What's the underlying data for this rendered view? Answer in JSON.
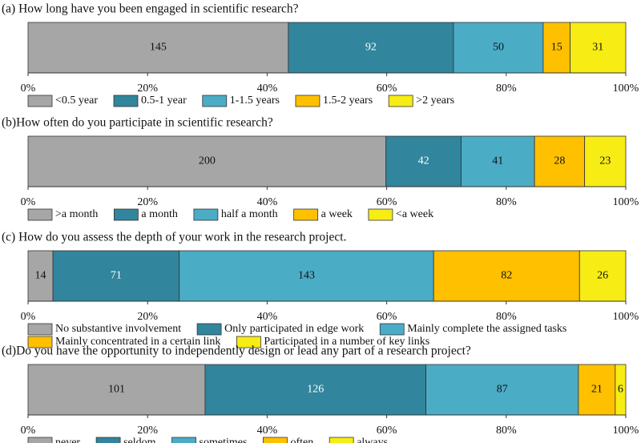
{
  "chart_data": [
    {
      "type": "bar",
      "orientation": "horizontal",
      "stacked": "percent",
      "title": "(a) How long have you been engaged in scientific research?",
      "xlim": [
        0,
        100
      ],
      "xticks": [
        {
          "value": 0,
          "label": "0%"
        },
        {
          "value": 20,
          "label": "20%"
        },
        {
          "value": 40,
          "label": "40%"
        },
        {
          "value": 60,
          "label": "60%"
        },
        {
          "value": 80,
          "label": "80%"
        },
        {
          "value": 100,
          "label": "100%"
        }
      ],
      "legend": "bottom",
      "series": [
        {
          "name": "<0.5 year",
          "color": "#a6a6a6",
          "values": [
            145
          ]
        },
        {
          "name": "0.5-1 year",
          "color": "#31859c",
          "values": [
            92
          ]
        },
        {
          "name": "1-1.5 years",
          "color": "#4bacc6",
          "values": [
            50
          ]
        },
        {
          "name": "1.5-2 years",
          "color": "#ffc000",
          "values": [
            15
          ]
        },
        {
          "name": ">2 years",
          "color": "#f7ec14",
          "values": [
            31
          ]
        }
      ]
    },
    {
      "type": "bar",
      "orientation": "horizontal",
      "stacked": "percent",
      "title": "(b)How often do you participate in scientific research?",
      "xlim": [
        0,
        100
      ],
      "xticks": [
        {
          "value": 0,
          "label": "0%"
        },
        {
          "value": 20,
          "label": "20%"
        },
        {
          "value": 40,
          "label": "40%"
        },
        {
          "value": 60,
          "label": "60%"
        },
        {
          "value": 80,
          "label": "80%"
        },
        {
          "value": 100,
          "label": "100%"
        }
      ],
      "legend": "bottom",
      "series": [
        {
          "name": ">a month",
          "color": "#a6a6a6",
          "values": [
            200
          ]
        },
        {
          "name": "a month",
          "color": "#31859c",
          "values": [
            42
          ]
        },
        {
          "name": "half a month",
          "color": "#4bacc6",
          "values": [
            41
          ]
        },
        {
          "name": "a week",
          "color": "#ffc000",
          "values": [
            28
          ]
        },
        {
          "name": "<a week",
          "color": "#f7ec14",
          "values": [
            23
          ]
        }
      ]
    },
    {
      "type": "bar",
      "orientation": "horizontal",
      "stacked": "percent",
      "title": "(c) How do you assess the depth of your work in the research project.",
      "xlim": [
        0,
        100
      ],
      "xticks": [
        {
          "value": 0,
          "label": "0%"
        },
        {
          "value": 20,
          "label": "20%"
        },
        {
          "value": 40,
          "label": "40%"
        },
        {
          "value": 60,
          "label": "60%"
        },
        {
          "value": 80,
          "label": "80%"
        },
        {
          "value": 100,
          "label": "100%"
        }
      ],
      "legend": "bottom",
      "series": [
        {
          "name": "No substantive involvement",
          "color": "#a6a6a6",
          "values": [
            14
          ]
        },
        {
          "name": "Only participated in edge work",
          "color": "#31859c",
          "values": [
            71
          ]
        },
        {
          "name": "Mainly complete the assigned tasks",
          "color": "#4bacc6",
          "values": [
            143
          ]
        },
        {
          "name": "Mainly concentrated in a certain link",
          "color": "#ffc000",
          "values": [
            82
          ]
        },
        {
          "name": "Participated in a number of key links",
          "color": "#f7ec14",
          "values": [
            26
          ]
        }
      ]
    },
    {
      "type": "bar",
      "orientation": "horizontal",
      "stacked": "percent",
      "title": "(d)Do you have the opportunity to independently design or lead any part of a research project?",
      "xlim": [
        0,
        100
      ],
      "xticks": [
        {
          "value": 0,
          "label": "0%"
        },
        {
          "value": 20,
          "label": "20%"
        },
        {
          "value": 40,
          "label": "40%"
        },
        {
          "value": 60,
          "label": "60%"
        },
        {
          "value": 80,
          "label": "80%"
        },
        {
          "value": 100,
          "label": "100%"
        }
      ],
      "legend": "bottom",
      "series": [
        {
          "name": "never",
          "color": "#a6a6a6",
          "values": [
            101
          ]
        },
        {
          "name": "seldom",
          "color": "#31859c",
          "values": [
            126
          ]
        },
        {
          "name": "sometimes",
          "color": "#4bacc6",
          "values": [
            87
          ]
        },
        {
          "name": "often",
          "color": "#ffc000",
          "values": [
            21
          ]
        },
        {
          "name": "always",
          "color": "#f7ec14",
          "values": [
            6
          ]
        }
      ]
    }
  ]
}
